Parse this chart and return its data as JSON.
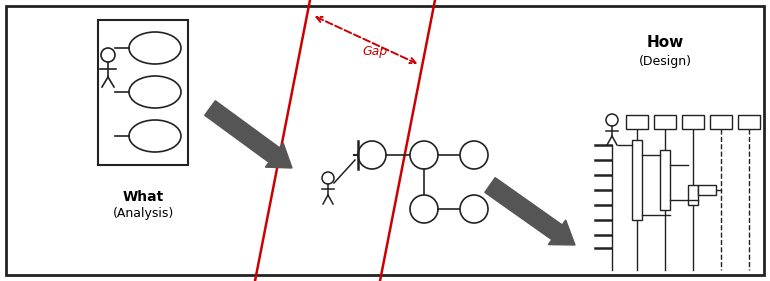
{
  "bg_color": "#ffffff",
  "border_color": "#222222",
  "red_line_color": "#cc0000",
  "arrow_color": "#555555",
  "text_color": "#000000",
  "title": "What",
  "subtitle": "(Analysis)",
  "title2": "How",
  "subtitle2": "(Design)",
  "gap_label": "Gap"
}
